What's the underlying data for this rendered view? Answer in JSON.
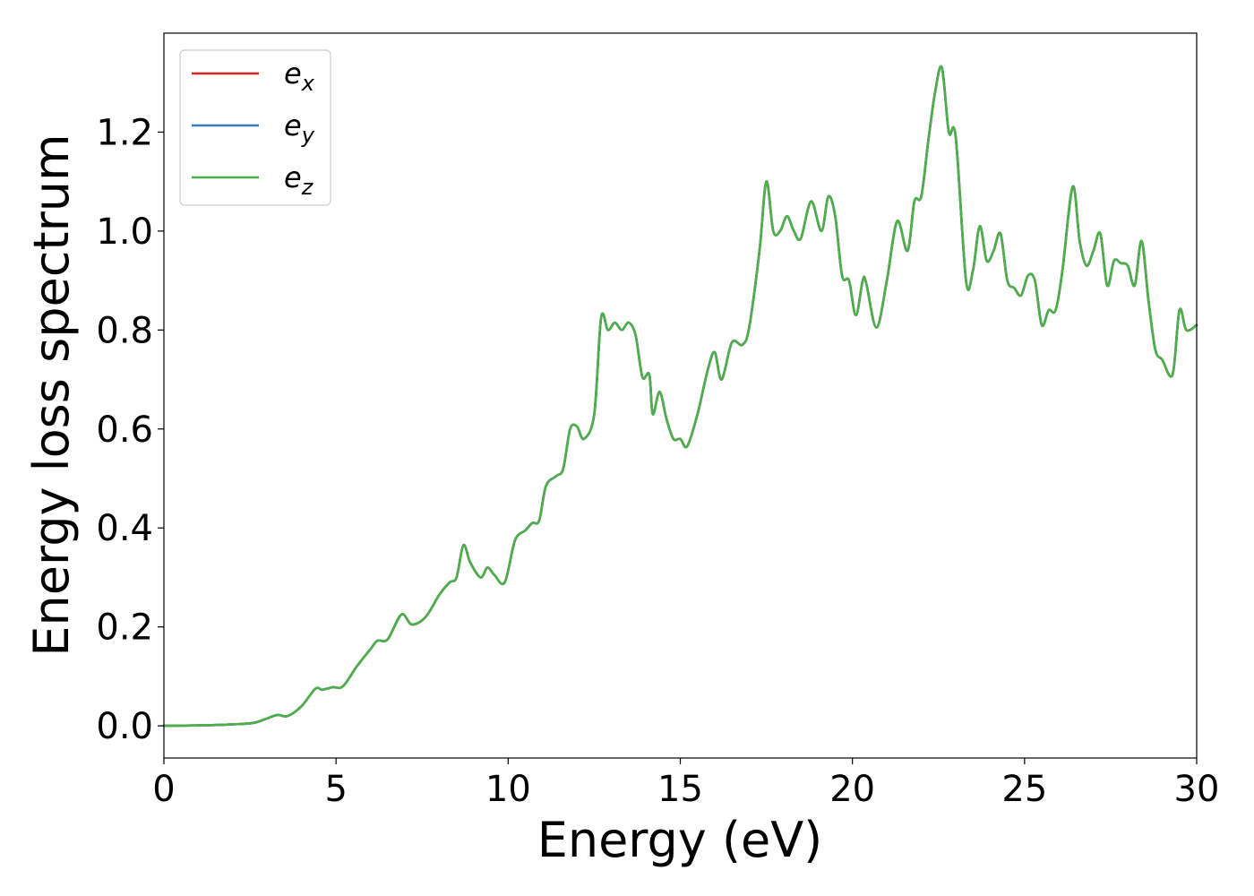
{
  "chart_data": {
    "type": "line",
    "title": "",
    "xlabel": "Energy (eV)",
    "ylabel": "Energy loss spectrum",
    "xlim": [
      0,
      30
    ],
    "ylim": [
      -0.065,
      1.4
    ],
    "xticks": [
      0,
      5,
      10,
      15,
      20,
      25,
      30
    ],
    "xtick_labels": [
      "0",
      "5",
      "10",
      "15",
      "20",
      "25",
      "30"
    ],
    "yticks": [
      0.0,
      0.2,
      0.4,
      0.6,
      0.8,
      1.0,
      1.2
    ],
    "ytick_labels": [
      "0.0",
      "0.2",
      "0.4",
      "0.6",
      "0.8",
      "1.0",
      "1.2"
    ],
    "grid": false,
    "legend_position": "top-left",
    "x": [
      0,
      1,
      2,
      2.6,
      3.0,
      3.3,
      3.6,
      4.0,
      4.4,
      4.6,
      4.9,
      5.2,
      5.6,
      6.0,
      6.2,
      6.5,
      6.9,
      7.2,
      7.6,
      8.0,
      8.3,
      8.5,
      8.7,
      8.9,
      9.2,
      9.4,
      9.6,
      9.9,
      10.2,
      10.5,
      10.7,
      10.9,
      11.1,
      11.4,
      11.6,
      11.8,
      12.0,
      12.2,
      12.5,
      12.7,
      12.9,
      13.1,
      13.3,
      13.5,
      13.7,
      13.9,
      14.1,
      14.2,
      14.4,
      14.6,
      14.8,
      15.0,
      15.2,
      15.5,
      15.8,
      16.0,
      16.2,
      16.5,
      16.8,
      17.0,
      17.3,
      17.5,
      17.7,
      17.9,
      18.1,
      18.3,
      18.5,
      18.8,
      19.1,
      19.3,
      19.5,
      19.7,
      19.9,
      20.1,
      20.3,
      20.4,
      20.7,
      21.0,
      21.3,
      21.6,
      21.8,
      22.0,
      22.2,
      22.4,
      22.6,
      22.8,
      23.0,
      23.3,
      23.5,
      23.7,
      23.9,
      24.1,
      24.3,
      24.5,
      24.7,
      24.9,
      25.1,
      25.3,
      25.5,
      25.7,
      25.9,
      26.1,
      26.4,
      26.6,
      26.8,
      27.0,
      27.2,
      27.4,
      27.6,
      27.8,
      28.0,
      28.2,
      28.4,
      28.6,
      28.8,
      29.0,
      29.3,
      29.5,
      29.7,
      30.0
    ],
    "series": [
      {
        "name": "e_x",
        "label_base": "e",
        "label_sub": "x",
        "color": "#d62728",
        "values": [
          0,
          0.001,
          0.003,
          0.006,
          0.015,
          0.022,
          0.02,
          0.04,
          0.075,
          0.073,
          0.078,
          0.08,
          0.12,
          0.155,
          0.172,
          0.175,
          0.225,
          0.205,
          0.22,
          0.265,
          0.29,
          0.3,
          0.365,
          0.33,
          0.3,
          0.32,
          0.305,
          0.29,
          0.375,
          0.395,
          0.41,
          0.415,
          0.485,
          0.505,
          0.52,
          0.6,
          0.605,
          0.58,
          0.63,
          0.825,
          0.8,
          0.815,
          0.8,
          0.815,
          0.79,
          0.705,
          0.71,
          0.63,
          0.675,
          0.62,
          0.58,
          0.58,
          0.565,
          0.63,
          0.72,
          0.755,
          0.7,
          0.775,
          0.77,
          0.805,
          0.96,
          1.1,
          1.0,
          1.0,
          1.03,
          1.0,
          0.985,
          1.06,
          1.0,
          1.07,
          1.03,
          0.91,
          0.9,
          0.83,
          0.9,
          0.895,
          0.805,
          0.9,
          1.02,
          0.96,
          1.06,
          1.07,
          1.18,
          1.28,
          1.33,
          1.2,
          1.19,
          0.9,
          0.92,
          1.01,
          0.94,
          0.96,
          0.995,
          0.9,
          0.885,
          0.87,
          0.91,
          0.9,
          0.81,
          0.84,
          0.84,
          0.92,
          1.09,
          0.98,
          0.93,
          0.96,
          0.995,
          0.89,
          0.94,
          0.935,
          0.93,
          0.89,
          0.98,
          0.86,
          0.76,
          0.74,
          0.71,
          0.84,
          0.8,
          0.81
        ]
      },
      {
        "name": "e_y",
        "label_base": "e",
        "label_sub": "y",
        "color": "#377eb8",
        "values": [
          0,
          0.001,
          0.003,
          0.006,
          0.015,
          0.022,
          0.02,
          0.04,
          0.075,
          0.073,
          0.078,
          0.08,
          0.12,
          0.155,
          0.172,
          0.175,
          0.225,
          0.205,
          0.22,
          0.265,
          0.29,
          0.3,
          0.365,
          0.33,
          0.3,
          0.32,
          0.305,
          0.29,
          0.375,
          0.395,
          0.41,
          0.415,
          0.485,
          0.505,
          0.52,
          0.6,
          0.605,
          0.58,
          0.63,
          0.825,
          0.8,
          0.815,
          0.8,
          0.815,
          0.79,
          0.705,
          0.71,
          0.63,
          0.675,
          0.62,
          0.58,
          0.58,
          0.565,
          0.63,
          0.72,
          0.755,
          0.7,
          0.775,
          0.77,
          0.805,
          0.96,
          1.1,
          1.0,
          1.0,
          1.03,
          1.0,
          0.985,
          1.06,
          1.0,
          1.07,
          1.03,
          0.91,
          0.9,
          0.83,
          0.9,
          0.895,
          0.805,
          0.9,
          1.02,
          0.96,
          1.06,
          1.07,
          1.18,
          1.28,
          1.33,
          1.2,
          1.19,
          0.9,
          0.92,
          1.01,
          0.94,
          0.96,
          0.995,
          0.9,
          0.885,
          0.87,
          0.91,
          0.9,
          0.81,
          0.84,
          0.84,
          0.92,
          1.09,
          0.98,
          0.93,
          0.96,
          0.995,
          0.89,
          0.94,
          0.935,
          0.93,
          0.89,
          0.98,
          0.86,
          0.76,
          0.74,
          0.71,
          0.84,
          0.8,
          0.81
        ]
      },
      {
        "name": "e_z",
        "label_base": "e",
        "label_sub": "z",
        "color": "#4daf4a",
        "values": [
          0,
          0.001,
          0.003,
          0.006,
          0.015,
          0.022,
          0.02,
          0.04,
          0.075,
          0.073,
          0.078,
          0.08,
          0.12,
          0.155,
          0.172,
          0.175,
          0.225,
          0.205,
          0.22,
          0.265,
          0.29,
          0.3,
          0.365,
          0.33,
          0.3,
          0.32,
          0.305,
          0.29,
          0.375,
          0.395,
          0.41,
          0.415,
          0.485,
          0.505,
          0.52,
          0.6,
          0.605,
          0.58,
          0.63,
          0.825,
          0.8,
          0.815,
          0.8,
          0.815,
          0.79,
          0.705,
          0.71,
          0.63,
          0.675,
          0.62,
          0.58,
          0.58,
          0.565,
          0.63,
          0.72,
          0.755,
          0.7,
          0.775,
          0.77,
          0.805,
          0.96,
          1.1,
          1.0,
          1.0,
          1.03,
          1.0,
          0.985,
          1.06,
          1.0,
          1.07,
          1.03,
          0.91,
          0.9,
          0.83,
          0.9,
          0.895,
          0.805,
          0.9,
          1.02,
          0.96,
          1.06,
          1.07,
          1.18,
          1.28,
          1.33,
          1.2,
          1.19,
          0.9,
          0.92,
          1.01,
          0.94,
          0.96,
          0.995,
          0.9,
          0.885,
          0.87,
          0.91,
          0.9,
          0.81,
          0.84,
          0.84,
          0.92,
          1.09,
          0.98,
          0.93,
          0.96,
          0.995,
          0.89,
          0.94,
          0.935,
          0.93,
          0.89,
          0.98,
          0.86,
          0.76,
          0.74,
          0.71,
          0.84,
          0.8,
          0.81
        ]
      }
    ]
  }
}
